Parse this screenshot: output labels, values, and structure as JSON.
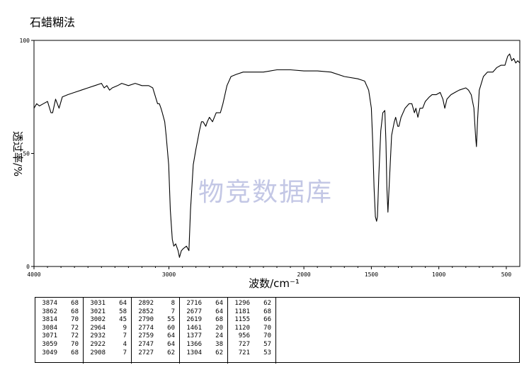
{
  "title": "石蜡糊法",
  "watermark": "物竞数据库",
  "chart_data": {
    "type": "line",
    "xlabel": "波数/cm⁻¹",
    "ylabel": "透过率/%",
    "xlim": [
      4000,
      400
    ],
    "ylim": [
      0,
      100
    ],
    "x_ticks": [
      4000,
      3000,
      2000,
      1500,
      1000,
      500
    ],
    "y_ticks": [
      0,
      50,
      100
    ],
    "grid": false,
    "series": [
      {
        "color": "#000000",
        "points": [
          [
            4000,
            70
          ],
          [
            3980,
            72
          ],
          [
            3960,
            71
          ],
          [
            3930,
            72
          ],
          [
            3900,
            73
          ],
          [
            3874,
            68
          ],
          [
            3862,
            68
          ],
          [
            3840,
            74
          ],
          [
            3814,
            70
          ],
          [
            3790,
            75
          ],
          [
            3750,
            76
          ],
          [
            3700,
            77
          ],
          [
            3650,
            78
          ],
          [
            3600,
            79
          ],
          [
            3550,
            80
          ],
          [
            3500,
            81
          ],
          [
            3480,
            79
          ],
          [
            3460,
            80
          ],
          [
            3440,
            78
          ],
          [
            3420,
            79
          ],
          [
            3380,
            80
          ],
          [
            3350,
            81
          ],
          [
            3300,
            80
          ],
          [
            3250,
            81
          ],
          [
            3200,
            80
          ],
          [
            3150,
            80
          ],
          [
            3120,
            79
          ],
          [
            3084,
            72
          ],
          [
            3071,
            72
          ],
          [
            3059,
            70
          ],
          [
            3049,
            68
          ],
          [
            3031,
            64
          ],
          [
            3021,
            58
          ],
          [
            3002,
            45
          ],
          [
            2990,
            25
          ],
          [
            2975,
            12
          ],
          [
            2964,
            9
          ],
          [
            2950,
            10
          ],
          [
            2932,
            7
          ],
          [
            2922,
            4
          ],
          [
            2908,
            7
          ],
          [
            2892,
            8
          ],
          [
            2870,
            9
          ],
          [
            2852,
            7
          ],
          [
            2840,
            25
          ],
          [
            2820,
            45
          ],
          [
            2800,
            52
          ],
          [
            2790,
            55
          ],
          [
            2774,
            60
          ],
          [
            2759,
            64
          ],
          [
            2747,
            64
          ],
          [
            2727,
            62
          ],
          [
            2716,
            64
          ],
          [
            2700,
            66
          ],
          [
            2677,
            64
          ],
          [
            2650,
            68
          ],
          [
            2619,
            68
          ],
          [
            2600,
            72
          ],
          [
            2570,
            80
          ],
          [
            2540,
            84
          ],
          [
            2500,
            85
          ],
          [
            2450,
            86
          ],
          [
            2400,
            86
          ],
          [
            2300,
            86
          ],
          [
            2200,
            87
          ],
          [
            2100,
            87
          ],
          [
            2000,
            86.5
          ],
          [
            1900,
            86.5
          ],
          [
            1800,
            86
          ],
          [
            1700,
            84
          ],
          [
            1600,
            83
          ],
          [
            1550,
            82
          ],
          [
            1520,
            78
          ],
          [
            1500,
            70
          ],
          [
            1490,
            55
          ],
          [
            1480,
            35
          ],
          [
            1470,
            22
          ],
          [
            1461,
            20
          ],
          [
            1455,
            22
          ],
          [
            1445,
            40
          ],
          [
            1430,
            60
          ],
          [
            1415,
            68
          ],
          [
            1400,
            69
          ],
          [
            1392,
            55
          ],
          [
            1385,
            35
          ],
          [
            1377,
            24
          ],
          [
            1366,
            38
          ],
          [
            1350,
            58
          ],
          [
            1330,
            64
          ],
          [
            1320,
            66
          ],
          [
            1304,
            62
          ],
          [
            1296,
            62
          ],
          [
            1280,
            66
          ],
          [
            1250,
            70
          ],
          [
            1220,
            72
          ],
          [
            1200,
            72
          ],
          [
            1181,
            68
          ],
          [
            1170,
            70
          ],
          [
            1155,
            66
          ],
          [
            1140,
            70
          ],
          [
            1120,
            70
          ],
          [
            1100,
            73
          ],
          [
            1070,
            75
          ],
          [
            1050,
            76
          ],
          [
            1020,
            76
          ],
          [
            990,
            77
          ],
          [
            970,
            74
          ],
          [
            956,
            70
          ],
          [
            940,
            74
          ],
          [
            910,
            76
          ],
          [
            880,
            77
          ],
          [
            850,
            78
          ],
          [
            800,
            79
          ],
          [
            780,
            78
          ],
          [
            760,
            76
          ],
          [
            740,
            70
          ],
          [
            733,
            63
          ],
          [
            727,
            57
          ],
          [
            721,
            53
          ],
          [
            713,
            65
          ],
          [
            700,
            78
          ],
          [
            670,
            84
          ],
          [
            640,
            86
          ],
          [
            600,
            86
          ],
          [
            570,
            88
          ],
          [
            540,
            89
          ],
          [
            510,
            89
          ],
          [
            490,
            93
          ],
          [
            475,
            94
          ],
          [
            460,
            91
          ],
          [
            445,
            92
          ],
          [
            430,
            90
          ],
          [
            415,
            91
          ],
          [
            400,
            90
          ]
        ]
      }
    ],
    "peaks": [
      {
        "wavenumber": 3874,
        "transmittance": 68
      },
      {
        "wavenumber": 3862,
        "transmittance": 68
      },
      {
        "wavenumber": 3814,
        "transmittance": 70
      },
      {
        "wavenumber": 3084,
        "transmittance": 72
      },
      {
        "wavenumber": 3071,
        "transmittance": 72
      },
      {
        "wavenumber": 3059,
        "transmittance": 70
      },
      {
        "wavenumber": 3049,
        "transmittance": 68
      },
      {
        "wavenumber": 3031,
        "transmittance": 64
      },
      {
        "wavenumber": 3021,
        "transmittance": 58
      },
      {
        "wavenumber": 3002,
        "transmittance": 45
      },
      {
        "wavenumber": 2964,
        "transmittance": 9
      },
      {
        "wavenumber": 2932,
        "transmittance": 7
      },
      {
        "wavenumber": 2922,
        "transmittance": 4
      },
      {
        "wavenumber": 2908,
        "transmittance": 7
      },
      {
        "wavenumber": 2892,
        "transmittance": 8
      },
      {
        "wavenumber": 2852,
        "transmittance": 7
      },
      {
        "wavenumber": 2790,
        "transmittance": 55
      },
      {
        "wavenumber": 2774,
        "transmittance": 60
      },
      {
        "wavenumber": 2759,
        "transmittance": 64
      },
      {
        "wavenumber": 2747,
        "transmittance": 64
      },
      {
        "wavenumber": 2727,
        "transmittance": 62
      },
      {
        "wavenumber": 2716,
        "transmittance": 64
      },
      {
        "wavenumber": 2677,
        "transmittance": 64
      },
      {
        "wavenumber": 2619,
        "transmittance": 68
      },
      {
        "wavenumber": 1461,
        "transmittance": 20
      },
      {
        "wavenumber": 1377,
        "transmittance": 24
      },
      {
        "wavenumber": 1366,
        "transmittance": 38
      },
      {
        "wavenumber": 1304,
        "transmittance": 62
      },
      {
        "wavenumber": 1296,
        "transmittance": 62
      },
      {
        "wavenumber": 1181,
        "transmittance": 68
      },
      {
        "wavenumber": 1155,
        "transmittance": 66
      },
      {
        "wavenumber": 1120,
        "transmittance": 70
      },
      {
        "wavenumber": 956,
        "transmittance": 70
      },
      {
        "wavenumber": 727,
        "transmittance": 57
      },
      {
        "wavenumber": 721,
        "transmittance": 53
      }
    ]
  }
}
